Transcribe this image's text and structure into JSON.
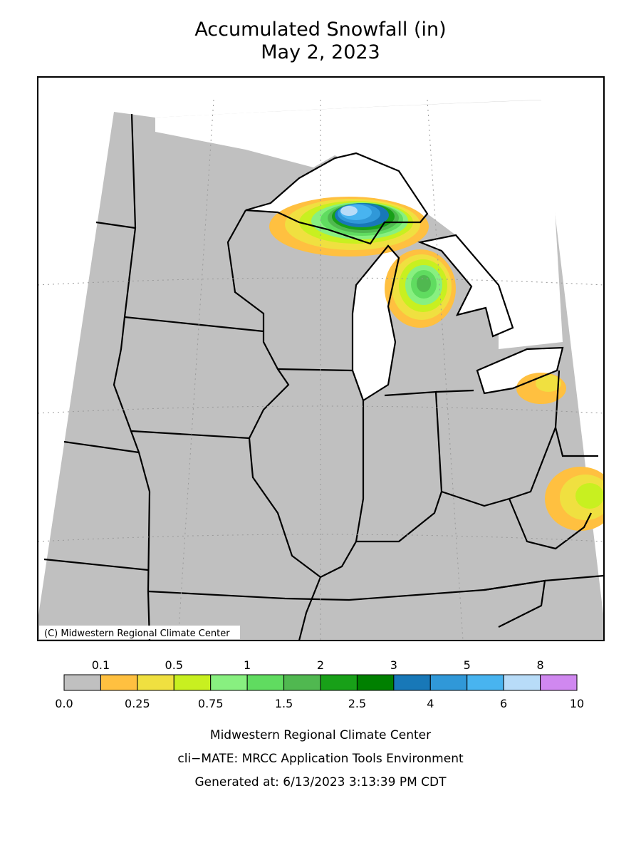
{
  "header": {
    "title": "Accumulated Snowfall (in)",
    "subtitle": "May 2, 2023"
  },
  "map": {
    "copyright": "(C) Midwestern Regional Climate Center"
  },
  "legend": {
    "boundaries": [
      "0.0",
      "0.1",
      "0.25",
      "0.5",
      "0.75",
      "1",
      "1.5",
      "2",
      "2.5",
      "3",
      "4",
      "5",
      "6",
      "8",
      "10"
    ],
    "colors": [
      "#c0c0c0",
      "#ffc040",
      "#f0e040",
      "#c8f020",
      "#88f080",
      "#60dc60",
      "#50b850",
      "#18a018",
      "#008000",
      "#1878b8",
      "#3098d8",
      "#48b4f0",
      "#b8dcf8",
      "#d088f0"
    ]
  },
  "footer": {
    "lines": [
      "Midwestern Regional Climate Center",
      "cli−MATE: MRCC Application Tools Environment",
      "Generated at: 6/13/2023 3:13:39 PM CDT"
    ]
  }
}
